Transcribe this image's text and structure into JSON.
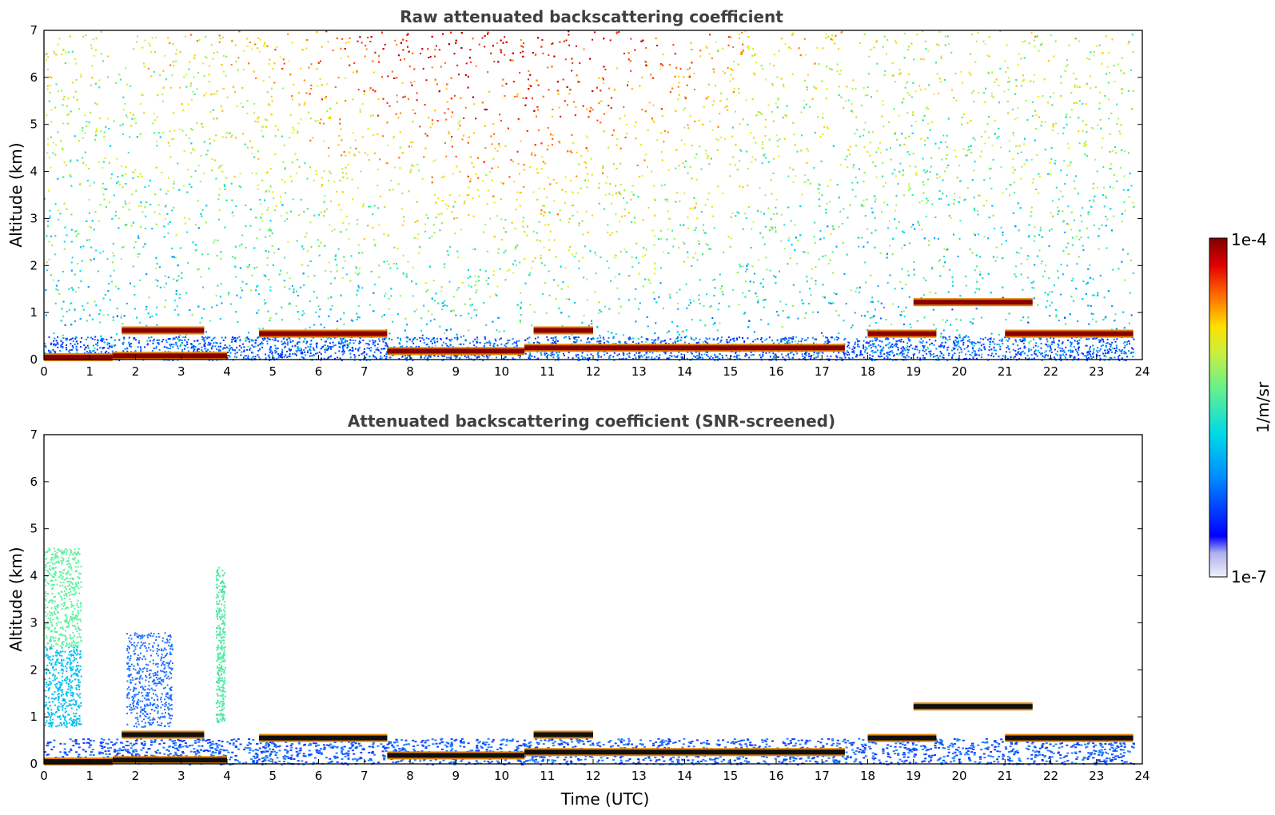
{
  "chart_data": [
    {
      "type": "heatmap",
      "title": "Raw attenuated backscattering coefficient",
      "xlabel": "",
      "ylabel": "Altitude (km)",
      "xlim": [
        0,
        24
      ],
      "ylim": [
        0,
        7
      ],
      "xticks": [
        "0",
        "1",
        "2",
        "3",
        "4",
        "5",
        "6",
        "7",
        "8",
        "9",
        "10",
        "11",
        "12",
        "13",
        "14",
        "15",
        "16",
        "17",
        "18",
        "19",
        "20",
        "21",
        "22",
        "23",
        "24"
      ],
      "yticks": [
        "0",
        "1",
        "2",
        "3",
        "4",
        "5",
        "6",
        "7"
      ],
      "grid": false,
      "noise": "raw",
      "layers": [
        {
          "x": [
            0.0,
            1.5
          ],
          "y": 0.05,
          "value": 0.0001
        },
        {
          "x": [
            1.5,
            4.0
          ],
          "y": 0.08,
          "value": 0.0001
        },
        {
          "x": [
            1.7,
            3.5
          ],
          "y": 0.62,
          "value": 0.0001
        },
        {
          "x": [
            4.7,
            7.5
          ],
          "y": 0.55,
          "value": 0.0001
        },
        {
          "x": [
            7.5,
            10.5
          ],
          "y": 0.18,
          "value": 0.0001
        },
        {
          "x": [
            10.7,
            12.0
          ],
          "y": 0.62,
          "value": 0.0001
        },
        {
          "x": [
            10.5,
            17.5
          ],
          "y": 0.25,
          "value": 0.0001
        },
        {
          "x": [
            18.0,
            19.5
          ],
          "y": 0.55,
          "value": 0.0001
        },
        {
          "x": [
            19.0,
            21.6
          ],
          "y": 1.22,
          "value": 0.0001
        },
        {
          "x": [
            21.0,
            23.8
          ],
          "y": 0.55,
          "value": 0.0001
        }
      ]
    },
    {
      "type": "heatmap",
      "title": "Attenuated backscattering coefficient (SNR-screened)",
      "xlabel": "Time (UTC)",
      "ylabel": "Altitude (km)",
      "xlim": [
        0,
        24
      ],
      "ylim": [
        0,
        7
      ],
      "xticks": [
        "0",
        "1",
        "2",
        "3",
        "4",
        "5",
        "6",
        "7",
        "8",
        "9",
        "10",
        "11",
        "12",
        "13",
        "14",
        "15",
        "16",
        "17",
        "18",
        "19",
        "20",
        "21",
        "22",
        "23",
        "24"
      ],
      "yticks": [
        "0",
        "1",
        "2",
        "3",
        "4",
        "5",
        "6",
        "7"
      ],
      "grid": false,
      "noise": "screened",
      "layers": [
        {
          "x": [
            0.0,
            1.5
          ],
          "y": 0.05,
          "value": 0.0001
        },
        {
          "x": [
            1.5,
            4.0
          ],
          "y": 0.08,
          "value": 0.0001
        },
        {
          "x": [
            1.7,
            3.5
          ],
          "y": 0.62,
          "value": 0.0001
        },
        {
          "x": [
            4.7,
            7.5
          ],
          "y": 0.55,
          "value": 0.0001
        },
        {
          "x": [
            7.5,
            10.5
          ],
          "y": 0.18,
          "value": 0.0001
        },
        {
          "x": [
            10.7,
            12.0
          ],
          "y": 0.62,
          "value": 0.0001
        },
        {
          "x": [
            10.5,
            17.5
          ],
          "y": 0.25,
          "value": 0.0001
        },
        {
          "x": [
            18.0,
            19.5
          ],
          "y": 0.55,
          "value": 0.0001
        },
        {
          "x": [
            19.0,
            21.6
          ],
          "y": 1.22,
          "value": 0.0001
        },
        {
          "x": [
            21.0,
            23.8
          ],
          "y": 0.55,
          "value": 0.0001
        }
      ]
    }
  ],
  "colorbar": {
    "label": "1/m/sr",
    "max_label": "1e-4",
    "min_label": "1e-7",
    "scale": "log",
    "range": [
      1e-07,
      0.0001
    ],
    "colors": [
      "#e8e8f8",
      "#0000ff",
      "#00c8ff",
      "#7fff7f",
      "#ffff00",
      "#ff3000",
      "#800000"
    ]
  }
}
